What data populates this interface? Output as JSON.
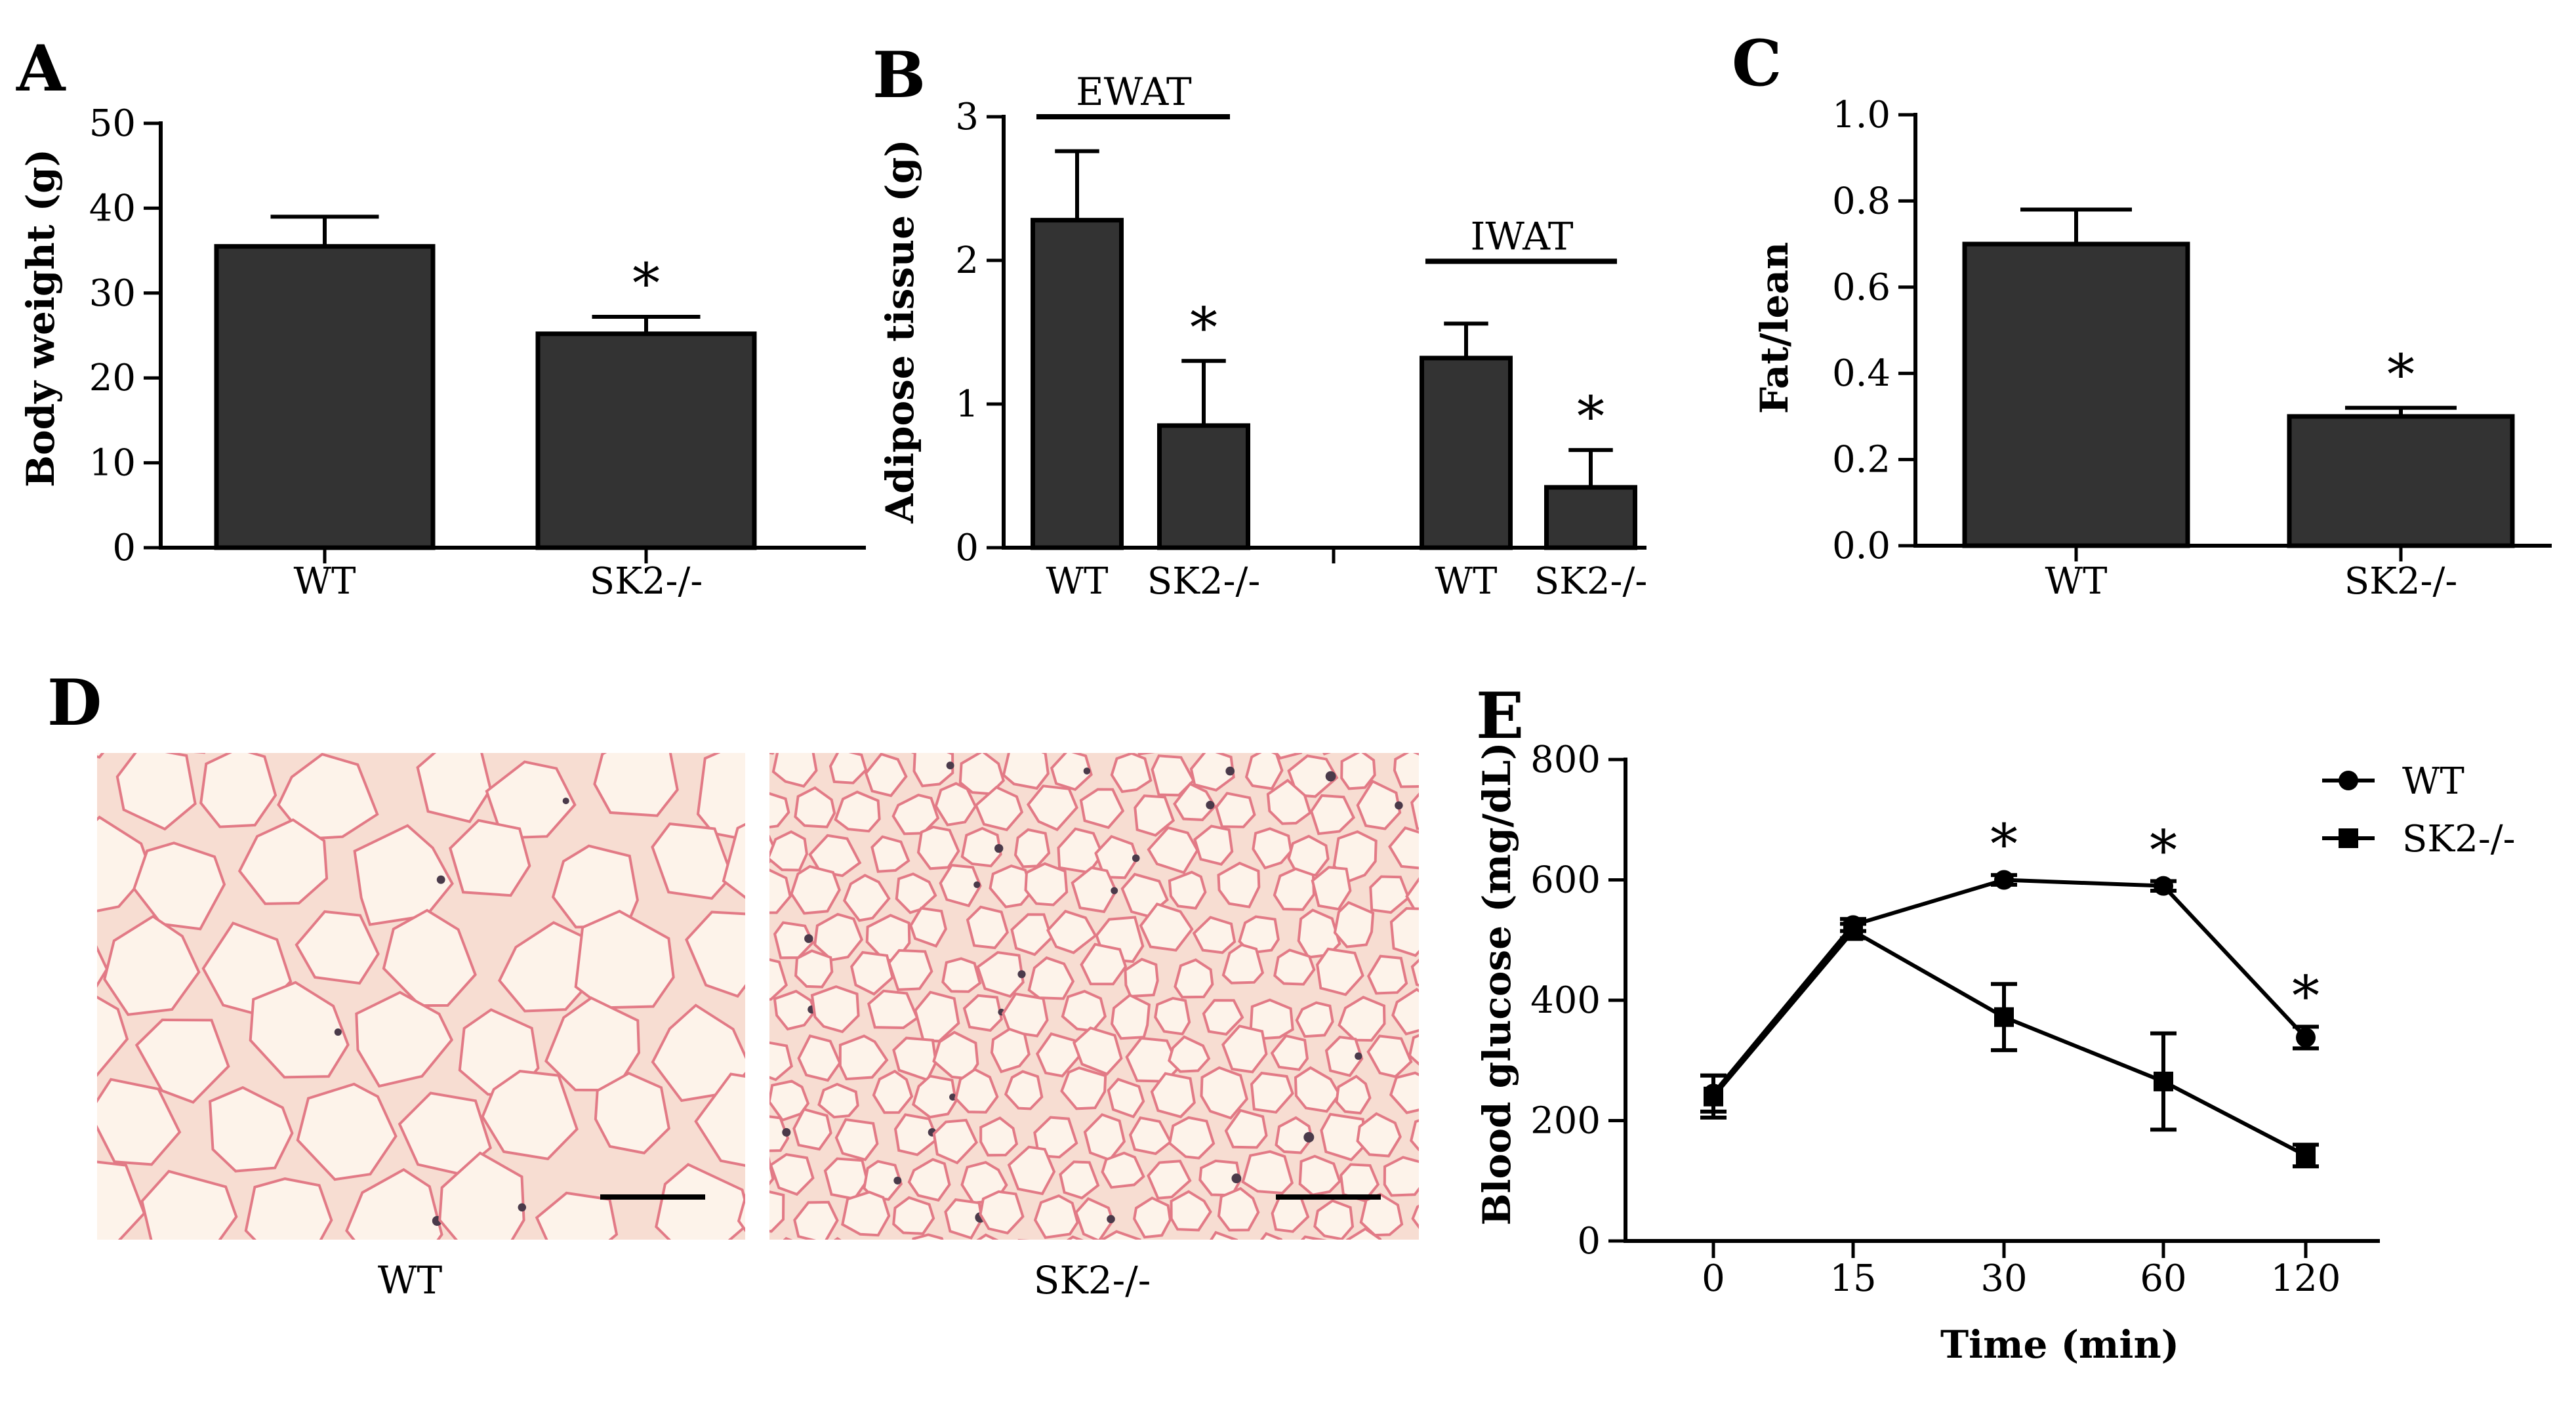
{
  "chart_data": [
    {
      "panel": "A",
      "type": "bar",
      "categories": [
        "WT",
        "SK2-/-"
      ],
      "values": [
        35.5,
        25.2
      ],
      "errors": [
        3.5,
        2.0
      ],
      "significance": [
        "",
        "*"
      ],
      "ylabel": "Body weight (g)",
      "ylim": [
        0,
        50
      ],
      "yticks": [
        0,
        10,
        20,
        30,
        40,
        50
      ]
    },
    {
      "panel": "B",
      "type": "bar",
      "groups": [
        {
          "name": "EWAT",
          "categories": [
            "WT",
            "SK2-/-"
          ],
          "values": [
            2.28,
            0.85
          ],
          "errors": [
            0.48,
            0.45
          ],
          "significance": [
            "",
            "*"
          ]
        },
        {
          "name": "IWAT",
          "categories": [
            "WT",
            "SK2-/-"
          ],
          "values": [
            1.32,
            0.42
          ],
          "errors": [
            0.24,
            0.26
          ],
          "significance": [
            "",
            "*"
          ]
        }
      ],
      "ylabel": "Adipose tissue (g)",
      "ylim": [
        0,
        3
      ],
      "yticks": [
        0,
        1,
        2,
        3
      ]
    },
    {
      "panel": "C",
      "type": "bar",
      "categories": [
        "WT",
        "SK2-/-"
      ],
      "values": [
        0.7,
        0.3
      ],
      "errors": [
        0.08,
        0.02
      ],
      "significance": [
        "",
        "*"
      ],
      "ylabel": "Fat/lean",
      "ylim": [
        0,
        1.0
      ],
      "yticks": [
        "0.0",
        "0.2",
        "0.4",
        "0.6",
        "0.8",
        "1.0"
      ]
    },
    {
      "panel": "E",
      "type": "line",
      "x": [
        "0",
        "15",
        "30",
        "60",
        "120"
      ],
      "series": [
        {
          "name": "WT",
          "marker": "circle",
          "values": [
            245,
            525,
            600,
            590,
            338
          ],
          "errors": [
            30,
            10,
            8,
            8,
            18
          ]
        },
        {
          "name": "SK2-/-",
          "marker": "square",
          "values": [
            240,
            515,
            372,
            265,
            142
          ],
          "errors": [
            35,
            12,
            55,
            80,
            18
          ]
        }
      ],
      "significance": [
        "",
        "",
        "*",
        "*",
        "*"
      ],
      "xlabel": "Time (min)",
      "ylabel": "Blood glucose (mg/dL)",
      "ylim": [
        0,
        800
      ],
      "yticks": [
        0,
        200,
        400,
        600,
        800
      ]
    }
  ],
  "panel_d": {
    "letter": "D",
    "images": [
      {
        "caption": "WT",
        "description": "histology-large-adipocytes"
      },
      {
        "caption": "SK2-/-",
        "description": "histology-small-adipocytes"
      }
    ]
  },
  "colors": {
    "bar_fill": "#333333",
    "histology_bg": "#f7ddd2",
    "histology_cell": "#fdf3ea",
    "histology_edge": "#e27a86",
    "histology_nuclei": "#4a3a4a"
  }
}
